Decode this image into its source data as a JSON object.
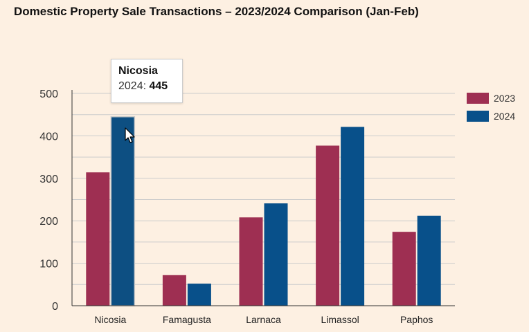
{
  "chart_data": {
    "type": "bar",
    "title": "Domestic Property Sale Transactions – 2023/2024 Comparison (Jan-Feb)",
    "categories": [
      "Nicosia",
      "Famagusta",
      "Larnaca",
      "Limassol",
      "Paphos"
    ],
    "series": [
      {
        "name": "2023",
        "color": "#9e2f52",
        "values": [
          314,
          72,
          208,
          377,
          174
        ]
      },
      {
        "name": "2024",
        "color": "#08508a",
        "values": [
          445,
          52,
          241,
          421,
          212
        ]
      }
    ],
    "ylim": [
      0,
      500
    ],
    "yticks": [
      0,
      100,
      200,
      300,
      400,
      500
    ],
    "xlabel": "",
    "ylabel": "",
    "grid": true,
    "legend": "top-right"
  },
  "tooltip": {
    "title": "Nicosia",
    "series_label": "2024:",
    "value": "445"
  },
  "colors": {
    "background": "#fdf0e2",
    "grid": "#cccccc",
    "axis": "#333333",
    "highlight_bar": "#0d4f82"
  }
}
